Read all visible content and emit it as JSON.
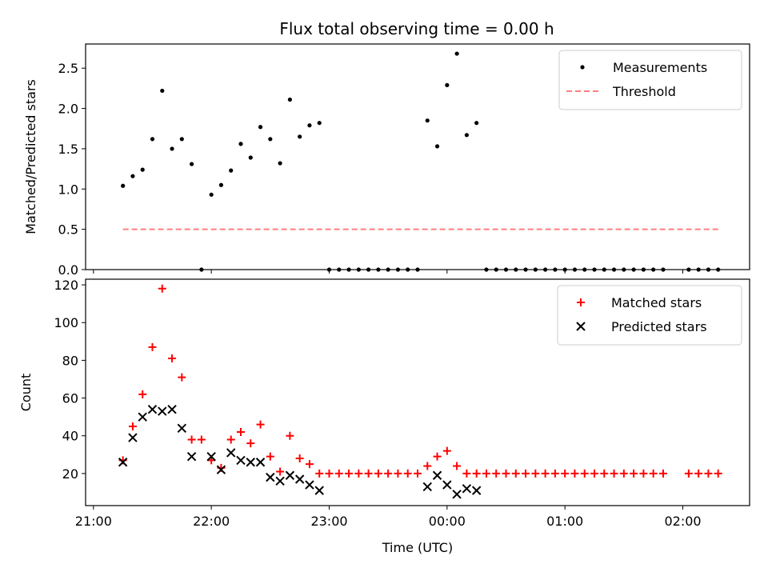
{
  "title": "Flux total observing time = 0.00 h",
  "chart_data": [
    {
      "type": "scatter",
      "ylabel": "Matched/Predicted stars",
      "ylim": [
        0,
        2.8
      ],
      "yticks": [
        0.0,
        0.5,
        1.0,
        1.5,
        2.0,
        2.5
      ],
      "ytick_labels": [
        "0.0",
        "0.5",
        "1.0",
        "1.5",
        "2.0",
        "2.5"
      ],
      "legend_position": "top-right",
      "series": [
        {
          "name": "Measurements",
          "color": "#000000",
          "marker": "dot",
          "points": [
            [
              255,
              1.04
            ],
            [
              260,
              1.16
            ],
            [
              265,
              1.24
            ],
            [
              270,
              1.62
            ],
            [
              275,
              2.22
            ],
            [
              280,
              1.5
            ],
            [
              285,
              1.62
            ],
            [
              290,
              1.31
            ],
            [
              295,
              0.0
            ],
            [
              300,
              0.93
            ],
            [
              305,
              1.05
            ],
            [
              310,
              1.23
            ],
            [
              315,
              1.56
            ],
            [
              320,
              1.39
            ],
            [
              325,
              1.77
            ],
            [
              330,
              1.62
            ],
            [
              335,
              1.32
            ],
            [
              340,
              2.11
            ],
            [
              345,
              1.65
            ],
            [
              350,
              1.79
            ],
            [
              355,
              1.82
            ],
            [
              360,
              0.0
            ],
            [
              365,
              0.0
            ],
            [
              370,
              0.0
            ],
            [
              375,
              0.0
            ],
            [
              380,
              0.0
            ],
            [
              385,
              0.0
            ],
            [
              390,
              0.0
            ],
            [
              395,
              0.0
            ],
            [
              400,
              0.0
            ],
            [
              405,
              0.0
            ],
            [
              410,
              1.85
            ],
            [
              415,
              1.53
            ],
            [
              420,
              2.29
            ],
            [
              425,
              2.68
            ],
            [
              430,
              1.67
            ],
            [
              435,
              1.82
            ],
            [
              440,
              0.0
            ],
            [
              445,
              0.0
            ],
            [
              450,
              0.0
            ],
            [
              455,
              0.0
            ],
            [
              460,
              0.0
            ],
            [
              465,
              0.0
            ],
            [
              470,
              0.0
            ],
            [
              475,
              0.0
            ],
            [
              480,
              0.0
            ],
            [
              485,
              0.0
            ],
            [
              490,
              0.0
            ],
            [
              495,
              0.0
            ],
            [
              500,
              0.0
            ],
            [
              505,
              0.0
            ],
            [
              510,
              0.0
            ],
            [
              515,
              0.0
            ],
            [
              520,
              0.0
            ],
            [
              525,
              0.0
            ],
            [
              530,
              0.0
            ],
            [
              543,
              0.0
            ],
            [
              548,
              0.0
            ],
            [
              553,
              0.0
            ],
            [
              558,
              0.0
            ]
          ]
        },
        {
          "name": "Threshold",
          "color": "#ff7f7f",
          "style": "dashed",
          "x_range": [
            255,
            558
          ],
          "value": 0.5
        }
      ]
    },
    {
      "type": "scatter",
      "xlabel": "Time (UTC)",
      "ylabel": "Count",
      "xlim": [
        236,
        574
      ],
      "xticks": [
        240,
        300,
        360,
        420,
        480,
        540
      ],
      "xtick_labels": [
        "21:00",
        "22:00",
        "23:00",
        "00:00",
        "01:00",
        "02:00"
      ],
      "ylim": [
        3,
        123
      ],
      "yticks": [
        20,
        40,
        60,
        80,
        100,
        120
      ],
      "ytick_labels": [
        "20",
        "40",
        "60",
        "80",
        "100",
        "120"
      ],
      "legend_position": "top-right",
      "series": [
        {
          "name": "Matched stars",
          "color": "#ff0000",
          "marker": "plus",
          "points": [
            [
              255,
              27
            ],
            [
              260,
              45
            ],
            [
              265,
              62
            ],
            [
              270,
              87
            ],
            [
              275,
              118
            ],
            [
              280,
              81
            ],
            [
              285,
              71
            ],
            [
              290,
              38
            ],
            [
              295,
              38
            ],
            [
              300,
              27
            ],
            [
              305,
              23
            ],
            [
              310,
              38
            ],
            [
              315,
              42
            ],
            [
              320,
              36
            ],
            [
              325,
              46
            ],
            [
              330,
              29
            ],
            [
              335,
              21
            ],
            [
              340,
              40
            ],
            [
              345,
              28
            ],
            [
              350,
              25
            ],
            [
              355,
              20
            ],
            [
              360,
              20
            ],
            [
              365,
              20
            ],
            [
              370,
              20
            ],
            [
              375,
              20
            ],
            [
              380,
              20
            ],
            [
              385,
              20
            ],
            [
              390,
              20
            ],
            [
              395,
              20
            ],
            [
              400,
              20
            ],
            [
              405,
              20
            ],
            [
              410,
              24
            ],
            [
              415,
              29
            ],
            [
              420,
              32
            ],
            [
              425,
              24
            ],
            [
              430,
              20
            ],
            [
              435,
              20
            ],
            [
              440,
              20
            ],
            [
              445,
              20
            ],
            [
              450,
              20
            ],
            [
              455,
              20
            ],
            [
              460,
              20
            ],
            [
              465,
              20
            ],
            [
              470,
              20
            ],
            [
              475,
              20
            ],
            [
              480,
              20
            ],
            [
              485,
              20
            ],
            [
              490,
              20
            ],
            [
              495,
              20
            ],
            [
              500,
              20
            ],
            [
              505,
              20
            ],
            [
              510,
              20
            ],
            [
              515,
              20
            ],
            [
              520,
              20
            ],
            [
              525,
              20
            ],
            [
              530,
              20
            ],
            [
              543,
              20
            ],
            [
              548,
              20
            ],
            [
              553,
              20
            ],
            [
              558,
              20
            ]
          ]
        },
        {
          "name": "Predicted stars",
          "color": "#000000",
          "marker": "x",
          "points": [
            [
              255,
              26
            ],
            [
              260,
              39
            ],
            [
              265,
              50
            ],
            [
              270,
              54
            ],
            [
              275,
              53
            ],
            [
              280,
              54
            ],
            [
              285,
              44
            ],
            [
              290,
              29
            ],
            [
              300,
              29
            ],
            [
              305,
              22
            ],
            [
              310,
              31
            ],
            [
              315,
              27
            ],
            [
              320,
              26
            ],
            [
              325,
              26
            ],
            [
              330,
              18
            ],
            [
              335,
              16
            ],
            [
              340,
              19
            ],
            [
              345,
              17
            ],
            [
              350,
              14
            ],
            [
              355,
              11
            ],
            [
              410,
              13
            ],
            [
              415,
              19
            ],
            [
              420,
              14
            ],
            [
              425,
              9
            ],
            [
              430,
              12
            ],
            [
              435,
              11
            ]
          ]
        }
      ]
    }
  ]
}
